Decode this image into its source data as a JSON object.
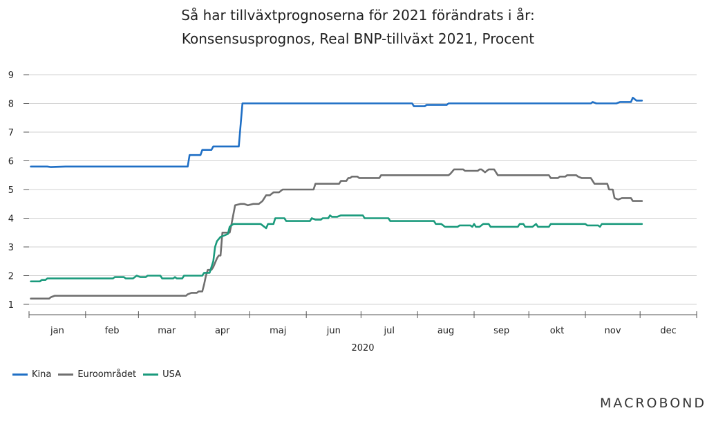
{
  "chart_data": {
    "type": "line",
    "title": "Så har tillväxtprognoserna för 2021 förändrats i år:",
    "subtitle": "Konsensusprognos, Real BNP-tillväxt 2021, Procent",
    "xlabel": "2020",
    "ylabel": "",
    "ylim": [
      1,
      9
    ],
    "yticks": [
      "1",
      "2",
      "3",
      "4",
      "5",
      "6",
      "7",
      "8",
      "9"
    ],
    "months": [
      "jan",
      "feb",
      "mar",
      "apr",
      "maj",
      "jun",
      "jul",
      "aug",
      "sep",
      "okt",
      "nov",
      "dec"
    ],
    "grid": "horizontal",
    "legend_position": "bottom-left",
    "series": [
      {
        "name": "Kina",
        "color": "#1f6fc5",
        "points": [
          [
            1,
            5.8
          ],
          [
            10,
            5.8
          ],
          [
            12,
            5.78
          ],
          [
            20,
            5.8
          ],
          [
            87,
            5.8
          ],
          [
            88,
            6.2
          ],
          [
            94,
            6.2
          ],
          [
            95,
            6.38
          ],
          [
            100,
            6.38
          ],
          [
            101,
            6.5
          ],
          [
            115,
            6.5
          ],
          [
            117,
            8.0
          ],
          [
            210,
            8.0
          ],
          [
            211,
            7.9
          ],
          [
            217,
            7.9
          ],
          [
            218,
            7.95
          ],
          [
            229,
            7.95
          ],
          [
            230,
            8.0
          ],
          [
            308,
            8.0
          ],
          [
            309,
            8.05
          ],
          [
            311,
            8.0
          ],
          [
            322,
            8.0
          ],
          [
            324,
            8.05
          ],
          [
            330,
            8.05
          ],
          [
            331,
            8.2
          ],
          [
            333,
            8.1
          ],
          [
            336,
            8.1
          ]
        ]
      },
      {
        "name": "Euroområdet",
        "color": "#6f6f6f",
        "points": [
          [
            1,
            1.2
          ],
          [
            11,
            1.2
          ],
          [
            12,
            1.25
          ],
          [
            14,
            1.3
          ],
          [
            86,
            1.3
          ],
          [
            87,
            1.35
          ],
          [
            89,
            1.4
          ],
          [
            92,
            1.4
          ],
          [
            93,
            1.45
          ],
          [
            95,
            1.45
          ],
          [
            96,
            1.7
          ],
          [
            97,
            2.0
          ],
          [
            98,
            2.2
          ],
          [
            100,
            2.2
          ],
          [
            101,
            2.3
          ],
          [
            103,
            2.6
          ],
          [
            104,
            2.7
          ],
          [
            105,
            2.7
          ],
          [
            106,
            3.5
          ],
          [
            110,
            3.5
          ],
          [
            111,
            3.8
          ],
          [
            113,
            4.45
          ],
          [
            116,
            4.5
          ],
          [
            118,
            4.5
          ],
          [
            120,
            4.45
          ],
          [
            123,
            4.5
          ],
          [
            126,
            4.5
          ],
          [
            128,
            4.6
          ],
          [
            130,
            4.8
          ],
          [
            132,
            4.8
          ],
          [
            134,
            4.9
          ],
          [
            137,
            4.9
          ],
          [
            139,
            5.0
          ],
          [
            156,
            5.0
          ],
          [
            157,
            5.2
          ],
          [
            170,
            5.2
          ],
          [
            171,
            5.3
          ],
          [
            174,
            5.3
          ],
          [
            175,
            5.4
          ],
          [
            176,
            5.4
          ],
          [
            177,
            5.45
          ],
          [
            180,
            5.45
          ],
          [
            181,
            5.4
          ],
          [
            192,
            5.4
          ],
          [
            193,
            5.5
          ],
          [
            230,
            5.5
          ],
          [
            231,
            5.55
          ],
          [
            233,
            5.7
          ],
          [
            238,
            5.7
          ],
          [
            239,
            5.65
          ],
          [
            246,
            5.65
          ],
          [
            247,
            5.7
          ],
          [
            248,
            5.7
          ],
          [
            250,
            5.6
          ],
          [
            252,
            5.7
          ],
          [
            255,
            5.7
          ],
          [
            257,
            5.5
          ],
          [
            285,
            5.5
          ],
          [
            286,
            5.4
          ],
          [
            290,
            5.4
          ],
          [
            291,
            5.45
          ],
          [
            294,
            5.45
          ],
          [
            295,
            5.5
          ],
          [
            300,
            5.5
          ],
          [
            301,
            5.45
          ],
          [
            303,
            5.4
          ],
          [
            308,
            5.4
          ],
          [
            310,
            5.2
          ],
          [
            317,
            5.2
          ],
          [
            318,
            5.0
          ],
          [
            320,
            5.0
          ],
          [
            321,
            4.7
          ],
          [
            323,
            4.65
          ],
          [
            325,
            4.7
          ],
          [
            330,
            4.7
          ],
          [
            331,
            4.6
          ],
          [
            336,
            4.6
          ]
        ]
      },
      {
        "name": "USA",
        "color": "#1a9a7c",
        "points": [
          [
            1,
            1.8
          ],
          [
            6,
            1.8
          ],
          [
            7,
            1.85
          ],
          [
            9,
            1.85
          ],
          [
            10,
            1.9
          ],
          [
            46,
            1.9
          ],
          [
            47,
            1.95
          ],
          [
            52,
            1.95
          ],
          [
            53,
            1.9
          ],
          [
            57,
            1.9
          ],
          [
            58,
            1.95
          ],
          [
            59,
            2.0
          ],
          [
            61,
            1.95
          ],
          [
            64,
            1.95
          ],
          [
            65,
            2.0
          ],
          [
            72,
            2.0
          ],
          [
            73,
            1.9
          ],
          [
            79,
            1.9
          ],
          [
            80,
            1.95
          ],
          [
            81,
            1.9
          ],
          [
            84,
            1.9
          ],
          [
            85,
            2.0
          ],
          [
            95,
            2.0
          ],
          [
            96,
            2.1
          ],
          [
            99,
            2.1
          ],
          [
            100,
            2.3
          ],
          [
            101,
            2.5
          ],
          [
            102,
            3.0
          ],
          [
            103,
            3.2
          ],
          [
            105,
            3.35
          ],
          [
            107,
            3.4
          ],
          [
            109,
            3.45
          ],
          [
            110,
            3.7
          ],
          [
            112,
            3.8
          ],
          [
            127,
            3.8
          ],
          [
            130,
            3.65
          ],
          [
            131,
            3.8
          ],
          [
            134,
            3.8
          ],
          [
            135,
            4.0
          ],
          [
            140,
            4.0
          ],
          [
            141,
            3.9
          ],
          [
            154,
            3.9
          ],
          [
            155,
            4.0
          ],
          [
            157,
            3.95
          ],
          [
            160,
            3.95
          ],
          [
            161,
            4.0
          ],
          [
            164,
            4.0
          ],
          [
            165,
            4.1
          ],
          [
            166,
            4.05
          ],
          [
            169,
            4.05
          ],
          [
            171,
            4.1
          ],
          [
            183,
            4.1
          ],
          [
            184,
            4.0
          ],
          [
            197,
            4.0
          ],
          [
            198,
            3.9
          ],
          [
            222,
            3.9
          ],
          [
            223,
            3.8
          ],
          [
            226,
            3.8
          ],
          [
            228,
            3.7
          ],
          [
            235,
            3.7
          ],
          [
            236,
            3.75
          ],
          [
            242,
            3.75
          ],
          [
            243,
            3.7
          ],
          [
            244,
            3.8
          ],
          [
            245,
            3.7
          ],
          [
            247,
            3.7
          ],
          [
            249,
            3.8
          ],
          [
            252,
            3.8
          ],
          [
            253,
            3.7
          ],
          [
            268,
            3.7
          ],
          [
            269,
            3.8
          ],
          [
            271,
            3.8
          ],
          [
            272,
            3.7
          ],
          [
            276,
            3.7
          ],
          [
            278,
            3.8
          ],
          [
            279,
            3.7
          ],
          [
            285,
            3.7
          ],
          [
            286,
            3.8
          ],
          [
            305,
            3.8
          ],
          [
            306,
            3.75
          ],
          [
            312,
            3.75
          ],
          [
            313,
            3.7
          ],
          [
            314,
            3.8
          ],
          [
            336,
            3.8
          ]
        ]
      }
    ]
  },
  "brand": "MACROBOND"
}
